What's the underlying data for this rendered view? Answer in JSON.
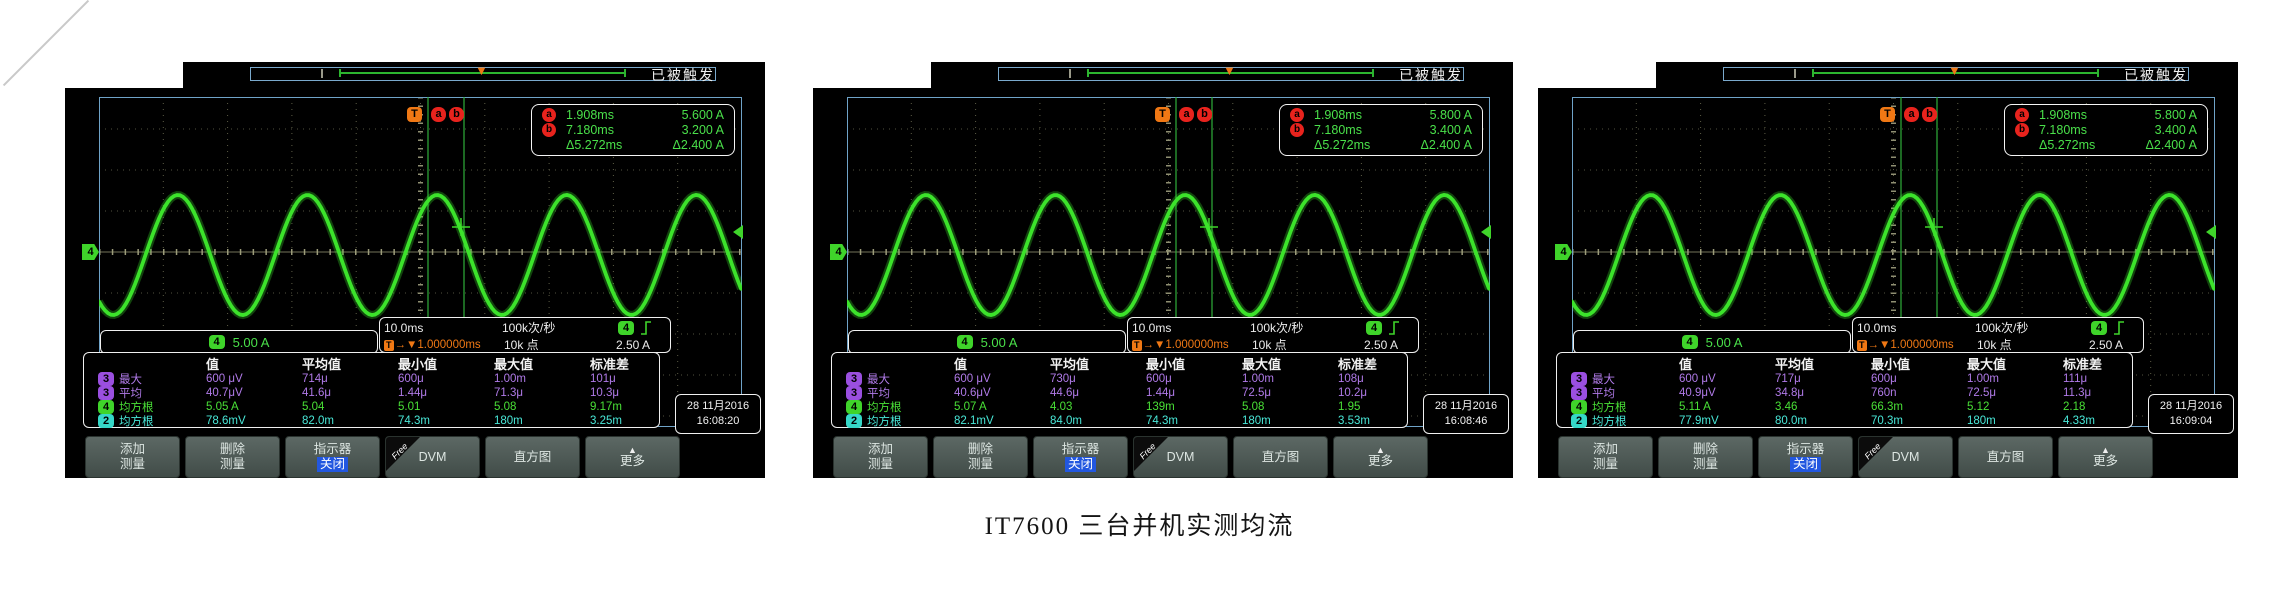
{
  "caption": "IT7600 三台并机实测均流",
  "colors": {
    "waveform_green": "#3ce32b",
    "ch2_cyan": "#35d8c8",
    "ch3_purple": "#9a4fe0",
    "ch4_green": "#3fd42a",
    "cursor_badge_red": "#e8231d",
    "trigger_orange": "#f07814",
    "graticule_border_blue": "#6fa3c8",
    "highlight_blue": "#2257e0"
  },
  "scope_common": {
    "trigger_status": "已被触发",
    "channel_badge": "4",
    "channel_scale": "5.00 A",
    "timebase": "10.0ms",
    "sample_rate": "100k次/秒",
    "trigger_source": "4",
    "delay_time": "1.000000ms",
    "record_length": "10k 点",
    "trigger_level": "2.50 A",
    "t_label": "T",
    "a_label": "a",
    "b_label": "b",
    "icons": {
      "trigger_position": "▼",
      "trigger_flag": "T",
      "delay": "→▼",
      "more_arrow": "▲"
    },
    "table_headers": [
      "值",
      "平均值",
      "最小值",
      "最大值",
      "标准差"
    ],
    "menu": [
      {
        "name": "menu-button-add-measurement",
        "line1": "添加",
        "line2": "测量"
      },
      {
        "name": "menu-button-delete-measurement",
        "line1": "删除",
        "line2": "测量"
      },
      {
        "name": "menu-button-indicator",
        "line1": "指示器",
        "line2": "关闭",
        "line2_highlight": true
      },
      {
        "name": "menu-button-dvm",
        "line1": "DVM",
        "ribbon": "Free"
      },
      {
        "name": "menu-button-histogram",
        "line1": "直方图"
      },
      {
        "name": "menu-button-more",
        "line1": "更多",
        "arrow": true
      }
    ]
  },
  "scopes": [
    {
      "cursor": {
        "a_time": "1.908ms",
        "a_value": "5.600 A",
        "b_time": "7.180ms",
        "b_value": "3.200 A",
        "delta_time": "Δ5.272ms",
        "delta_value": "Δ2.400 A"
      },
      "measurements": [
        {
          "ch": "3",
          "name": "最大",
          "value": "600 μV",
          "mean": "714μ",
          "min": "600μ",
          "max": "1.00m",
          "std": "101μ"
        },
        {
          "ch": "3",
          "name": "平均",
          "value": "40.7μV",
          "mean": "41.6μ",
          "min": "1.44μ",
          "max": "71.3μ",
          "std": "10.3μ"
        },
        {
          "ch": "4",
          "name": "均方根",
          "value": "5.05 A",
          "mean": "5.04",
          "min": "5.01",
          "max": "5.08",
          "std": "9.17m"
        },
        {
          "ch": "2",
          "name": "均方根",
          "value": "78.6mV",
          "mean": "82.0m",
          "min": "74.3m",
          "max": "180m",
          "std": "3.25m"
        }
      ],
      "date": "28 11月2016",
      "time": "16:08:20"
    },
    {
      "cursor": {
        "a_time": "1.908ms",
        "a_value": "5.800 A",
        "b_time": "7.180ms",
        "b_value": "3.400 A",
        "delta_time": "Δ5.272ms",
        "delta_value": "Δ2.400 A"
      },
      "measurements": [
        {
          "ch": "3",
          "name": "最大",
          "value": "600 μV",
          "mean": "730μ",
          "min": "600μ",
          "max": "1.00m",
          "std": "108μ"
        },
        {
          "ch": "3",
          "name": "平均",
          "value": "40.6μV",
          "mean": "44.6μ",
          "min": "1.44μ",
          "max": "72.5μ",
          "std": "10.2μ"
        },
        {
          "ch": "4",
          "name": "均方根",
          "value": "5.07 A",
          "mean": "4.03",
          "min": "139m",
          "max": "5.08",
          "std": "1.95"
        },
        {
          "ch": "2",
          "name": "均方根",
          "value": "82.1mV",
          "mean": "84.0m",
          "min": "74.3m",
          "max": "180m",
          "std": "3.53m"
        }
      ],
      "date": "28 11月2016",
      "time": "16:08:46"
    },
    {
      "cursor": {
        "a_time": "1.908ms",
        "a_value": "5.800 A",
        "b_time": "7.180ms",
        "b_value": "3.400 A",
        "delta_time": "Δ5.272ms",
        "delta_value": "Δ2.400 A"
      },
      "measurements": [
        {
          "ch": "3",
          "name": "最大",
          "value": "600 μV",
          "mean": "717μ",
          "min": "600μ",
          "max": "1.00m",
          "std": "111μ"
        },
        {
          "ch": "3",
          "name": "平均",
          "value": "40.9μV",
          "mean": "34.8μ",
          "min": "760n",
          "max": "72.5μ",
          "std": "11.3μ"
        },
        {
          "ch": "4",
          "name": "均方根",
          "value": "5.11 A",
          "mean": "3.46",
          "min": "66.3m",
          "max": "5.12",
          "std": "2.18"
        },
        {
          "ch": "2",
          "name": "均方根",
          "value": "77.9mV",
          "mean": "80.0m",
          "min": "70.3m",
          "max": "180m",
          "std": "4.33m"
        }
      ],
      "date": "28 11月2016",
      "time": "16:09:04"
    }
  ]
}
